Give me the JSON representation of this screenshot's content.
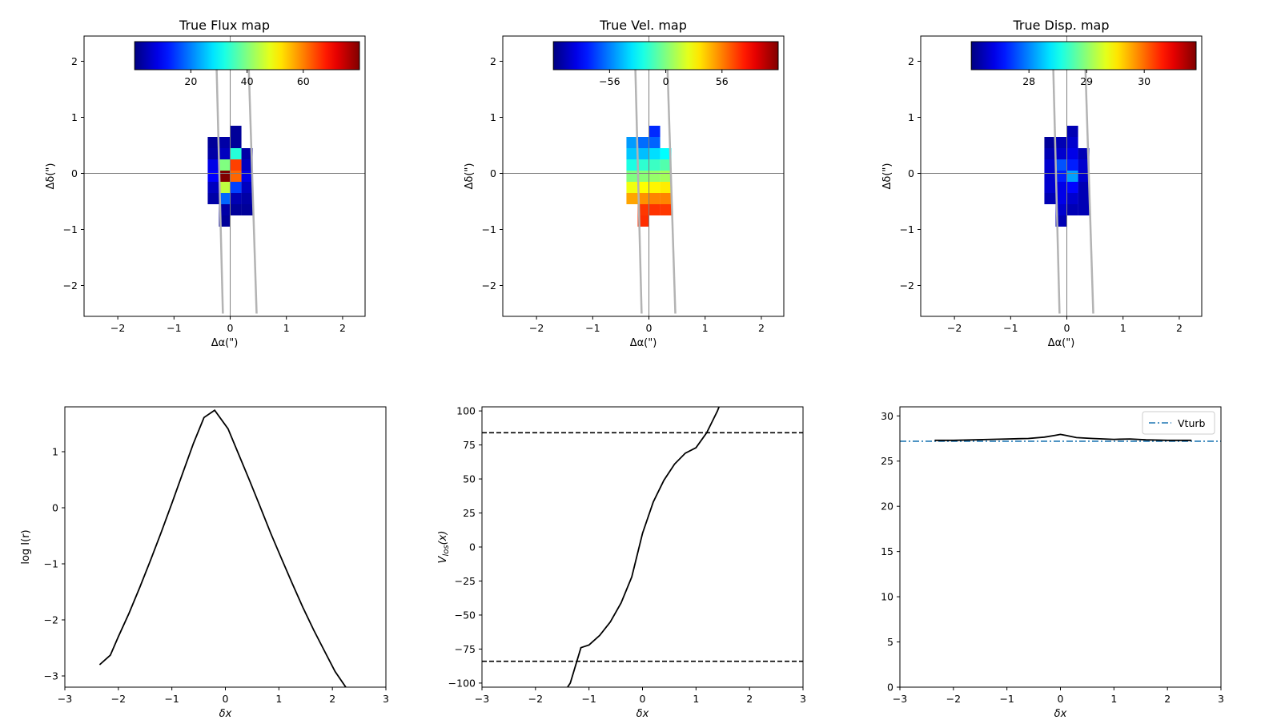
{
  "chart_data": [
    {
      "type": "heatmap",
      "title": "True Flux map",
      "xlabel": "Δα(\")",
      "ylabel": "Δδ(\")",
      "xlim": [
        -2.6,
        2.4
      ],
      "ylim": [
        -2.55,
        2.45
      ],
      "xticks": [
        -2,
        -1,
        0,
        1,
        2
      ],
      "yticks": [
        -2,
        -1,
        0,
        1,
        2
      ],
      "pixel_size": 0.2,
      "colorbar": {
        "range": [
          0,
          80
        ],
        "ticks": [
          20,
          40,
          60
        ],
        "colormap": "jet"
      },
      "slit_lines": [
        [
          [
            -0.25,
            2.2
          ],
          [
            -0.13,
            -2.5
          ]
        ],
        [
          [
            0.32,
            2.2
          ],
          [
            0.47,
            -2.5
          ]
        ]
      ],
      "pixels": [
        {
          "x": 0.1,
          "y": 0.75,
          "v": 2
        },
        {
          "x": -0.3,
          "y": 0.55,
          "v": 2
        },
        {
          "x": -0.1,
          "y": 0.55,
          "v": 3
        },
        {
          "x": 0.1,
          "y": 0.55,
          "v": 2
        },
        {
          "x": -0.3,
          "y": 0.35,
          "v": 3
        },
        {
          "x": -0.1,
          "y": 0.35,
          "v": 5
        },
        {
          "x": 0.1,
          "y": 0.35,
          "v": 33
        },
        {
          "x": 0.3,
          "y": 0.35,
          "v": 3
        },
        {
          "x": -0.3,
          "y": 0.15,
          "v": 8
        },
        {
          "x": -0.1,
          "y": 0.15,
          "v": 40
        },
        {
          "x": 0.1,
          "y": 0.15,
          "v": 65
        },
        {
          "x": 0.3,
          "y": 0.15,
          "v": 5
        },
        {
          "x": -0.3,
          "y": -0.05,
          "v": 10
        },
        {
          "x": -0.1,
          "y": -0.05,
          "v": 80
        },
        {
          "x": 0.1,
          "y": -0.05,
          "v": 62
        },
        {
          "x": 0.3,
          "y": -0.05,
          "v": 8
        },
        {
          "x": -0.3,
          "y": -0.25,
          "v": 5
        },
        {
          "x": -0.1,
          "y": -0.25,
          "v": 45
        },
        {
          "x": 0.1,
          "y": -0.25,
          "v": 15
        },
        {
          "x": 0.3,
          "y": -0.25,
          "v": 5
        },
        {
          "x": -0.3,
          "y": -0.45,
          "v": 3
        },
        {
          "x": -0.1,
          "y": -0.45,
          "v": 18
        },
        {
          "x": 0.1,
          "y": -0.45,
          "v": 4
        },
        {
          "x": 0.3,
          "y": -0.45,
          "v": 3
        },
        {
          "x": -0.1,
          "y": -0.65,
          "v": 3
        },
        {
          "x": 0.1,
          "y": -0.65,
          "v": 2
        },
        {
          "x": 0.3,
          "y": -0.65,
          "v": 2
        },
        {
          "x": -0.1,
          "y": -0.85,
          "v": 2
        }
      ]
    },
    {
      "type": "heatmap",
      "title": "True Vel. map",
      "xlabel": "Δα(\")",
      "ylabel": "Δδ(\")",
      "xlim": [
        -2.6,
        2.4
      ],
      "ylim": [
        -2.55,
        2.45
      ],
      "xticks": [
        -2,
        -1,
        0,
        1,
        2
      ],
      "yticks": [
        -2,
        -1,
        0,
        1,
        2
      ],
      "pixel_size": 0.2,
      "colorbar": {
        "range": [
          -112,
          112
        ],
        "ticks": [
          -56,
          0,
          56
        ],
        "colormap": "jet"
      },
      "slit_lines": [
        [
          [
            -0.25,
            2.2
          ],
          [
            -0.13,
            -2.5
          ]
        ],
        [
          [
            0.32,
            2.2
          ],
          [
            0.47,
            -2.5
          ]
        ]
      ],
      "pixels": [
        {
          "x": 0.1,
          "y": 0.75,
          "v": -75
        },
        {
          "x": -0.3,
          "y": 0.55,
          "v": -50
        },
        {
          "x": -0.1,
          "y": 0.55,
          "v": -60
        },
        {
          "x": 0.1,
          "y": 0.55,
          "v": -62
        },
        {
          "x": -0.3,
          "y": 0.35,
          "v": -40
        },
        {
          "x": -0.1,
          "y": 0.35,
          "v": -42
        },
        {
          "x": 0.1,
          "y": 0.35,
          "v": -35
        },
        {
          "x": 0.3,
          "y": 0.35,
          "v": -28
        },
        {
          "x": -0.3,
          "y": 0.15,
          "v": -22
        },
        {
          "x": -0.1,
          "y": 0.15,
          "v": -18
        },
        {
          "x": 0.1,
          "y": 0.15,
          "v": -15
        },
        {
          "x": 0.3,
          "y": 0.15,
          "v": -10
        },
        {
          "x": -0.3,
          "y": -0.05,
          "v": 0
        },
        {
          "x": -0.1,
          "y": -0.05,
          "v": 2
        },
        {
          "x": 0.1,
          "y": -0.05,
          "v": 5
        },
        {
          "x": 0.3,
          "y": -0.05,
          "v": 8
        },
        {
          "x": -0.3,
          "y": -0.25,
          "v": 25
        },
        {
          "x": -0.1,
          "y": -0.25,
          "v": 28
        },
        {
          "x": 0.1,
          "y": -0.25,
          "v": 30
        },
        {
          "x": 0.3,
          "y": -0.25,
          "v": 32
        },
        {
          "x": -0.3,
          "y": -0.45,
          "v": 48
        },
        {
          "x": -0.1,
          "y": -0.45,
          "v": 52
        },
        {
          "x": 0.1,
          "y": -0.45,
          "v": 55
        },
        {
          "x": 0.3,
          "y": -0.45,
          "v": 55
        },
        {
          "x": -0.1,
          "y": -0.65,
          "v": 72
        },
        {
          "x": 0.1,
          "y": -0.65,
          "v": 73
        },
        {
          "x": 0.3,
          "y": -0.65,
          "v": 72
        },
        {
          "x": -0.1,
          "y": -0.85,
          "v": 74
        }
      ]
    },
    {
      "type": "heatmap",
      "title": "True Disp. map",
      "xlabel": "Δα(\")",
      "ylabel": "Δδ(\")",
      "xlim": [
        -2.6,
        2.4
      ],
      "ylim": [
        -2.55,
        2.45
      ],
      "xticks": [
        -2,
        -1,
        0,
        1,
        2
      ],
      "yticks": [
        -2,
        -1,
        0,
        1,
        2
      ],
      "pixel_size": 0.2,
      "colorbar": {
        "range": [
          27.0,
          30.9
        ],
        "ticks": [
          28,
          29,
          30
        ],
        "colormap": "jet"
      },
      "slit_lines": [
        [
          [
            -0.25,
            2.2
          ],
          [
            -0.13,
            -2.5
          ]
        ],
        [
          [
            0.32,
            2.2
          ],
          [
            0.47,
            -2.5
          ]
        ]
      ],
      "pixels": [
        {
          "x": 0.1,
          "y": 0.75,
          "v": 27.2
        },
        {
          "x": -0.3,
          "y": 0.55,
          "v": 27.1
        },
        {
          "x": -0.1,
          "y": 0.55,
          "v": 27.2
        },
        {
          "x": 0.1,
          "y": 0.55,
          "v": 27.3
        },
        {
          "x": -0.3,
          "y": 0.35,
          "v": 27.2
        },
        {
          "x": -0.1,
          "y": 0.35,
          "v": 27.3
        },
        {
          "x": 0.1,
          "y": 0.35,
          "v": 27.4
        },
        {
          "x": 0.3,
          "y": 0.35,
          "v": 27.2
        },
        {
          "x": -0.3,
          "y": 0.15,
          "v": 27.3
        },
        {
          "x": -0.1,
          "y": 0.15,
          "v": 27.8
        },
        {
          "x": 0.1,
          "y": 0.15,
          "v": 27.6
        },
        {
          "x": 0.3,
          "y": 0.15,
          "v": 27.3
        },
        {
          "x": -0.3,
          "y": -0.05,
          "v": 27.3
        },
        {
          "x": -0.1,
          "y": -0.05,
          "v": 27.6
        },
        {
          "x": 0.1,
          "y": -0.05,
          "v": 28.1
        },
        {
          "x": 0.3,
          "y": -0.05,
          "v": 27.3
        },
        {
          "x": -0.3,
          "y": -0.25,
          "v": 27.3
        },
        {
          "x": -0.1,
          "y": -0.25,
          "v": 27.4
        },
        {
          "x": 0.1,
          "y": -0.25,
          "v": 27.5
        },
        {
          "x": 0.3,
          "y": -0.25,
          "v": 27.2
        },
        {
          "x": -0.3,
          "y": -0.45,
          "v": 27.2
        },
        {
          "x": -0.1,
          "y": -0.45,
          "v": 27.4
        },
        {
          "x": 0.1,
          "y": -0.45,
          "v": 27.3
        },
        {
          "x": 0.3,
          "y": -0.45,
          "v": 27.2
        },
        {
          "x": -0.1,
          "y": -0.65,
          "v": 27.3
        },
        {
          "x": 0.1,
          "y": -0.65,
          "v": 27.2
        },
        {
          "x": 0.3,
          "y": -0.65,
          "v": 27.2
        },
        {
          "x": -0.1,
          "y": -0.85,
          "v": 27.2
        }
      ]
    },
    {
      "type": "line",
      "title": "",
      "xlabel": "δx",
      "ylabel": "log I(r)",
      "xlim": [
        -3,
        3
      ],
      "ylim": [
        -3.2,
        1.8
      ],
      "xticks": [
        -3,
        -2,
        -1,
        0,
        1,
        2,
        3
      ],
      "yticks": [
        -3,
        -2,
        -1,
        0,
        1
      ],
      "series": [
        {
          "x": [
            -2.35,
            -2.15,
            -2.0,
            -1.8,
            -1.6,
            -1.4,
            -1.2,
            -1.0,
            -0.8,
            -0.6,
            -0.4,
            -0.2,
            0.05,
            0.25,
            0.45,
            0.65,
            0.85,
            1.05,
            1.25,
            1.45,
            1.65,
            1.85,
            2.05,
            2.25,
            2.45,
            2.5
          ],
          "y": [
            -2.8,
            -2.63,
            -2.3,
            -1.88,
            -1.42,
            -0.94,
            -0.44,
            0.08,
            0.61,
            1.14,
            1.61,
            1.74,
            1.41,
            0.95,
            0.49,
            0.02,
            -0.46,
            -0.91,
            -1.35,
            -1.78,
            -2.18,
            -2.55,
            -2.92,
            -3.2,
            -3.3,
            -3.35
          ]
        }
      ]
    },
    {
      "type": "line",
      "title": "",
      "xlabel": "δx",
      "ylabel": "V_los(x)",
      "xlim": [
        -3,
        3
      ],
      "ylim": [
        -103,
        103
      ],
      "xticks": [
        -3,
        -2,
        -1,
        0,
        1,
        2,
        3
      ],
      "yticks": [
        -100,
        -75,
        -50,
        -25,
        0,
        25,
        50,
        75,
        100
      ],
      "hlines": [
        84,
        -84
      ],
      "series": [
        {
          "x": [
            -1.4,
            -1.35,
            -1.15,
            -1.0,
            -0.8,
            -0.6,
            -0.4,
            -0.2,
            0.0,
            0.2,
            0.4,
            0.6,
            0.8,
            1.0,
            1.2,
            1.4,
            1.5
          ],
          "y": [
            -103,
            -100,
            -74,
            -72,
            -65,
            -55,
            -41,
            -22,
            10,
            33,
            49,
            61,
            69,
            73,
            84,
            100,
            110
          ]
        }
      ]
    },
    {
      "type": "line",
      "title": "",
      "xlabel": "δx",
      "ylabel": "",
      "xlim": [
        -3,
        3
      ],
      "ylim": [
        0,
        31
      ],
      "xticks": [
        -3,
        -2,
        -1,
        0,
        1,
        2,
        3
      ],
      "yticks": [
        0,
        5,
        10,
        15,
        20,
        25,
        30
      ],
      "legend": {
        "position": "top-right",
        "entries": [
          "Vturb"
        ]
      },
      "vturb": 27.2,
      "series": [
        {
          "x": [
            -2.35,
            -2.0,
            -1.6,
            -1.3,
            -1.0,
            -0.6,
            -0.3,
            -0.1,
            0.0,
            0.1,
            0.3,
            0.6,
            1.0,
            1.3,
            1.6,
            2.0,
            2.45
          ],
          "y": [
            27.3,
            27.3,
            27.35,
            27.4,
            27.45,
            27.5,
            27.65,
            27.85,
            27.95,
            27.85,
            27.6,
            27.5,
            27.4,
            27.45,
            27.35,
            27.3,
            27.3
          ]
        }
      ]
    }
  ]
}
